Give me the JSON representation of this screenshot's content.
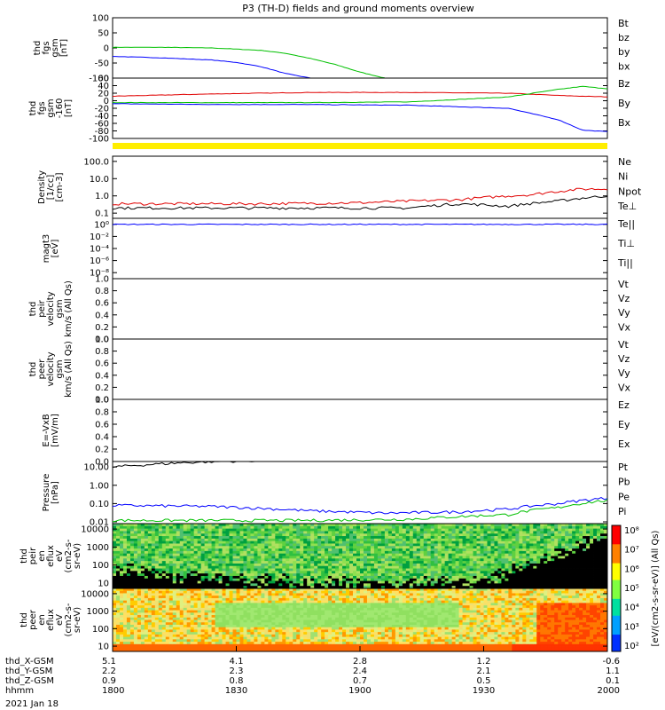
{
  "title": "P3 (TH-D) fields and ground moments overview",
  "chart_data": {
    "type": "line",
    "x_ticks": [
      "1800",
      "1830",
      "1900",
      "1930",
      "2000"
    ],
    "date": "2021 Jan 18",
    "ephemeris": {
      "labels": [
        "thd_X-GSM",
        "thd_Y-GSM",
        "thd_Z-GSM",
        "hhmm"
      ],
      "rows": [
        [
          "5.1",
          "4.1",
          "2.8",
          "1.2",
          "-0.6"
        ],
        [
          "2.2",
          "2.3",
          "2.4",
          "2.1",
          "1.1"
        ],
        [
          "0.9",
          "0.8",
          "0.7",
          "0.5",
          "0.1"
        ],
        [
          "1800",
          "1830",
          "1900",
          "1930",
          "2000"
        ]
      ]
    },
    "panels": [
      {
        "id": "fgs",
        "ylabel": [
          "thd",
          "fgs",
          "gsm",
          "[nT]"
        ],
        "scale": "linear",
        "ylim": [
          -100,
          100
        ],
        "ticks": [
          "100",
          "50",
          "0",
          "-50",
          "-100"
        ],
        "legend": [
          {
            "name": "Bt",
            "color": "#000000"
          },
          {
            "name": "bz",
            "color": "#e00000"
          },
          {
            "name": "by",
            "color": "#00c000"
          },
          {
            "name": "bx",
            "color": "#0000ff"
          }
        ],
        "series": [
          {
            "name": "by",
            "color": "#00c000",
            "x": [
              0,
              0.1,
              0.2,
              0.3,
              0.35,
              0.4,
              0.45,
              0.5,
              0.55
            ],
            "y": [
              2,
              2,
              0,
              -8,
              -18,
              -35,
              -55,
              -80,
              -100
            ]
          },
          {
            "name": "bx",
            "color": "#0000ff",
            "x": [
              0,
              0.1,
              0.2,
              0.25,
              0.3,
              0.35,
              0.4
            ],
            "y": [
              -28,
              -33,
              -40,
              -48,
              -62,
              -85,
              -100
            ]
          }
        ]
      },
      {
        "id": "fgs-dsl",
        "ylabel": [
          "thd",
          "fgs",
          "gsm",
          "-160",
          "[nT]"
        ],
        "scale": "linear",
        "ylim": [
          -100,
          60
        ],
        "ticks": [
          "60",
          "40",
          "20",
          "0",
          "-20",
          "-40",
          "-60",
          "-80",
          "-100"
        ],
        "legend": [
          {
            "name": "Bz",
            "color": "#e00000"
          },
          {
            "name": "By",
            "color": "#00c000"
          },
          {
            "name": "Bx",
            "color": "#0000ff"
          }
        ],
        "series": [
          {
            "name": "Bz",
            "color": "#e00000",
            "x": [
              0,
              0.2,
              0.4,
              0.6,
              0.8,
              0.9,
              1.0
            ],
            "y": [
              12,
              18,
              22,
              22,
              20,
              14,
              10
            ]
          },
          {
            "name": "By",
            "color": "#00c000",
            "x": [
              0,
              0.2,
              0.4,
              0.6,
              0.8,
              0.9,
              0.95,
              1.0
            ],
            "y": [
              -5,
              -5,
              -5,
              -3,
              10,
              30,
              38,
              32
            ]
          },
          {
            "name": "Bx",
            "color": "#0000ff",
            "x": [
              0,
              0.2,
              0.4,
              0.6,
              0.8,
              0.9,
              0.95,
              1.0
            ],
            "y": [
              -8,
              -10,
              -10,
              -12,
              -20,
              -50,
              -78,
              -82
            ]
          }
        ]
      },
      {
        "id": "density",
        "ylabel": [
          "Density",
          "[1/cc]",
          "[cm-3]"
        ],
        "scale": "log",
        "ylim": [
          0.05,
          200
        ],
        "ticks": [
          "100.0",
          "10.0",
          "1.0",
          "0.1"
        ],
        "legend": [
          {
            "name": "Ne",
            "color": "#e00000"
          },
          {
            "name": "Ni",
            "color": "#000000"
          },
          {
            "name": "Npot",
            "color": "#0000ff"
          },
          {
            "name": "Te⊥",
            "color": "#e00000"
          }
        ],
        "series": [
          {
            "name": "Ne",
            "color": "#e00000",
            "x": [
              0,
              0.3,
              0.5,
              0.7,
              0.85,
              0.95,
              1.0
            ],
            "y": [
              0.35,
              0.35,
              0.4,
              0.6,
              1.2,
              2.5,
              2.5
            ]
          },
          {
            "name": "Ni",
            "color": "#000000",
            "x": [
              0,
              0.3,
              0.6,
              0.7,
              0.8,
              0.9,
              1.0
            ],
            "y": [
              0.2,
              0.2,
              0.2,
              0.35,
              0.25,
              0.5,
              1.0
            ]
          }
        ]
      },
      {
        "id": "magt3",
        "ylabel": [
          "magt3",
          "[eV]"
        ],
        "scale": "log",
        "ylim": [
          1e-09,
          10
        ],
        "ticks": [
          "10⁰",
          "10⁻²",
          "10⁻⁴",
          "10⁻⁶",
          "10⁻⁸"
        ],
        "legend": [
          {
            "name": "Te||",
            "color": "#000000"
          },
          {
            "name": "Ti⊥",
            "color": "#0000ff"
          },
          {
            "name": "Ti||",
            "color": "#00c000"
          }
        ],
        "series": [
          {
            "name": "Ti",
            "color": "#0000ff",
            "x": [
              0,
              1
            ],
            "y": [
              1,
              1
            ]
          }
        ]
      },
      {
        "id": "peir",
        "ylabel": [
          "thd",
          "peir",
          "velocity",
          "gsm",
          "km/s (All Qs)"
        ],
        "scale": "linear",
        "ylim": [
          0,
          1
        ],
        "ticks": [
          "1.0",
          "0.8",
          "0.6",
          "0.4",
          "0.2",
          "0.0"
        ],
        "legend": [
          {
            "name": "Vt",
            "color": "#000000"
          },
          {
            "name": "Vz",
            "color": "#e00000"
          },
          {
            "name": "Vy",
            "color": "#00c000"
          },
          {
            "name": "Vx",
            "color": "#0000ff"
          }
        ],
        "series": []
      },
      {
        "id": "peer",
        "ylabel": [
          "thd",
          "peer",
          "velocity",
          "gsm",
          "km/s (All Qs)"
        ],
        "scale": "linear",
        "ylim": [
          0,
          1
        ],
        "ticks": [
          "1.0",
          "0.8",
          "0.6",
          "0.4",
          "0.2",
          "0.0"
        ],
        "legend": [
          {
            "name": "Vt",
            "color": "#000000"
          },
          {
            "name": "Vz",
            "color": "#e00000"
          },
          {
            "name": "Vy",
            "color": "#00c000"
          },
          {
            "name": "Vx",
            "color": "#0000ff"
          }
        ],
        "series": []
      },
      {
        "id": "e",
        "ylabel": [
          "E=-VxB",
          "[mV/m]"
        ],
        "scale": "linear",
        "ylim": [
          0,
          1
        ],
        "ticks": [
          "1.0",
          "0.8",
          "0.6",
          "0.4",
          "0.2",
          "0.0"
        ],
        "legend": [
          {
            "name": "Ez",
            "color": "#e00000"
          },
          {
            "name": "Ey",
            "color": "#00c000"
          },
          {
            "name": "Ex",
            "color": "#0000ff"
          }
        ],
        "series": []
      },
      {
        "id": "pressure",
        "ylabel": [
          "Pressure",
          "[nPa]"
        ],
        "scale": "log",
        "ylim": [
          0.008,
          20
        ],
        "ticks": [
          "10.00",
          "1.00",
          "0.10",
          "0.01"
        ],
        "legend": [
          {
            "name": "Pt",
            "color": "#000000"
          },
          {
            "name": "Pb",
            "color": "#e00000"
          },
          {
            "name": "Pe",
            "color": "#00c000"
          },
          {
            "name": "Pi",
            "color": "#0000ff"
          }
        ],
        "series": [
          {
            "name": "Pt",
            "color": "#000000",
            "x": [
              0,
              0.1,
              0.2,
              0.35
            ],
            "y": [
              10,
              15,
              20,
              25
            ]
          },
          {
            "name": "Pi",
            "color": "#0000ff",
            "x": [
              0,
              0.2,
              0.4,
              0.55,
              0.7,
              0.8,
              0.9,
              1.0
            ],
            "y": [
              0.08,
              0.07,
              0.04,
              0.03,
              0.035,
              0.05,
              0.1,
              0.2
            ]
          },
          {
            "name": "Pe",
            "color": "#00c000",
            "x": [
              0,
              0.4,
              0.6,
              0.8,
              0.9,
              1.0
            ],
            "y": [
              0.012,
              0.012,
              0.014,
              0.025,
              0.06,
              0.15
            ]
          }
        ]
      },
      {
        "id": "peir-en",
        "ylabel": [
          "thd",
          "peir",
          "en",
          "eflux",
          "eV",
          "(cm2-s-",
          "sr-eV)"
        ],
        "scale": "log",
        "ylim": [
          5,
          20000
        ],
        "ticks": [
          "10000",
          "1000",
          "100",
          "10"
        ],
        "kind": "spectrogram",
        "variant": "ion"
      },
      {
        "id": "peer-en",
        "ylabel": [
          "thd",
          "peer",
          "en",
          "eflux",
          "eV",
          "(cm2-s-",
          "sr-eV)"
        ],
        "scale": "log",
        "ylim": [
          5,
          20000
        ],
        "ticks": [
          "10000",
          "1000",
          "100",
          "10"
        ],
        "kind": "spectrogram",
        "variant": "electron"
      }
    ],
    "colorbar": {
      "ticks": [
        "10⁸",
        "10⁷",
        "10⁶",
        "10⁵",
        "10⁴",
        "10³",
        "10²"
      ],
      "label": "[eV/(cm2-s-sr-eV)] (All Qs)"
    }
  }
}
